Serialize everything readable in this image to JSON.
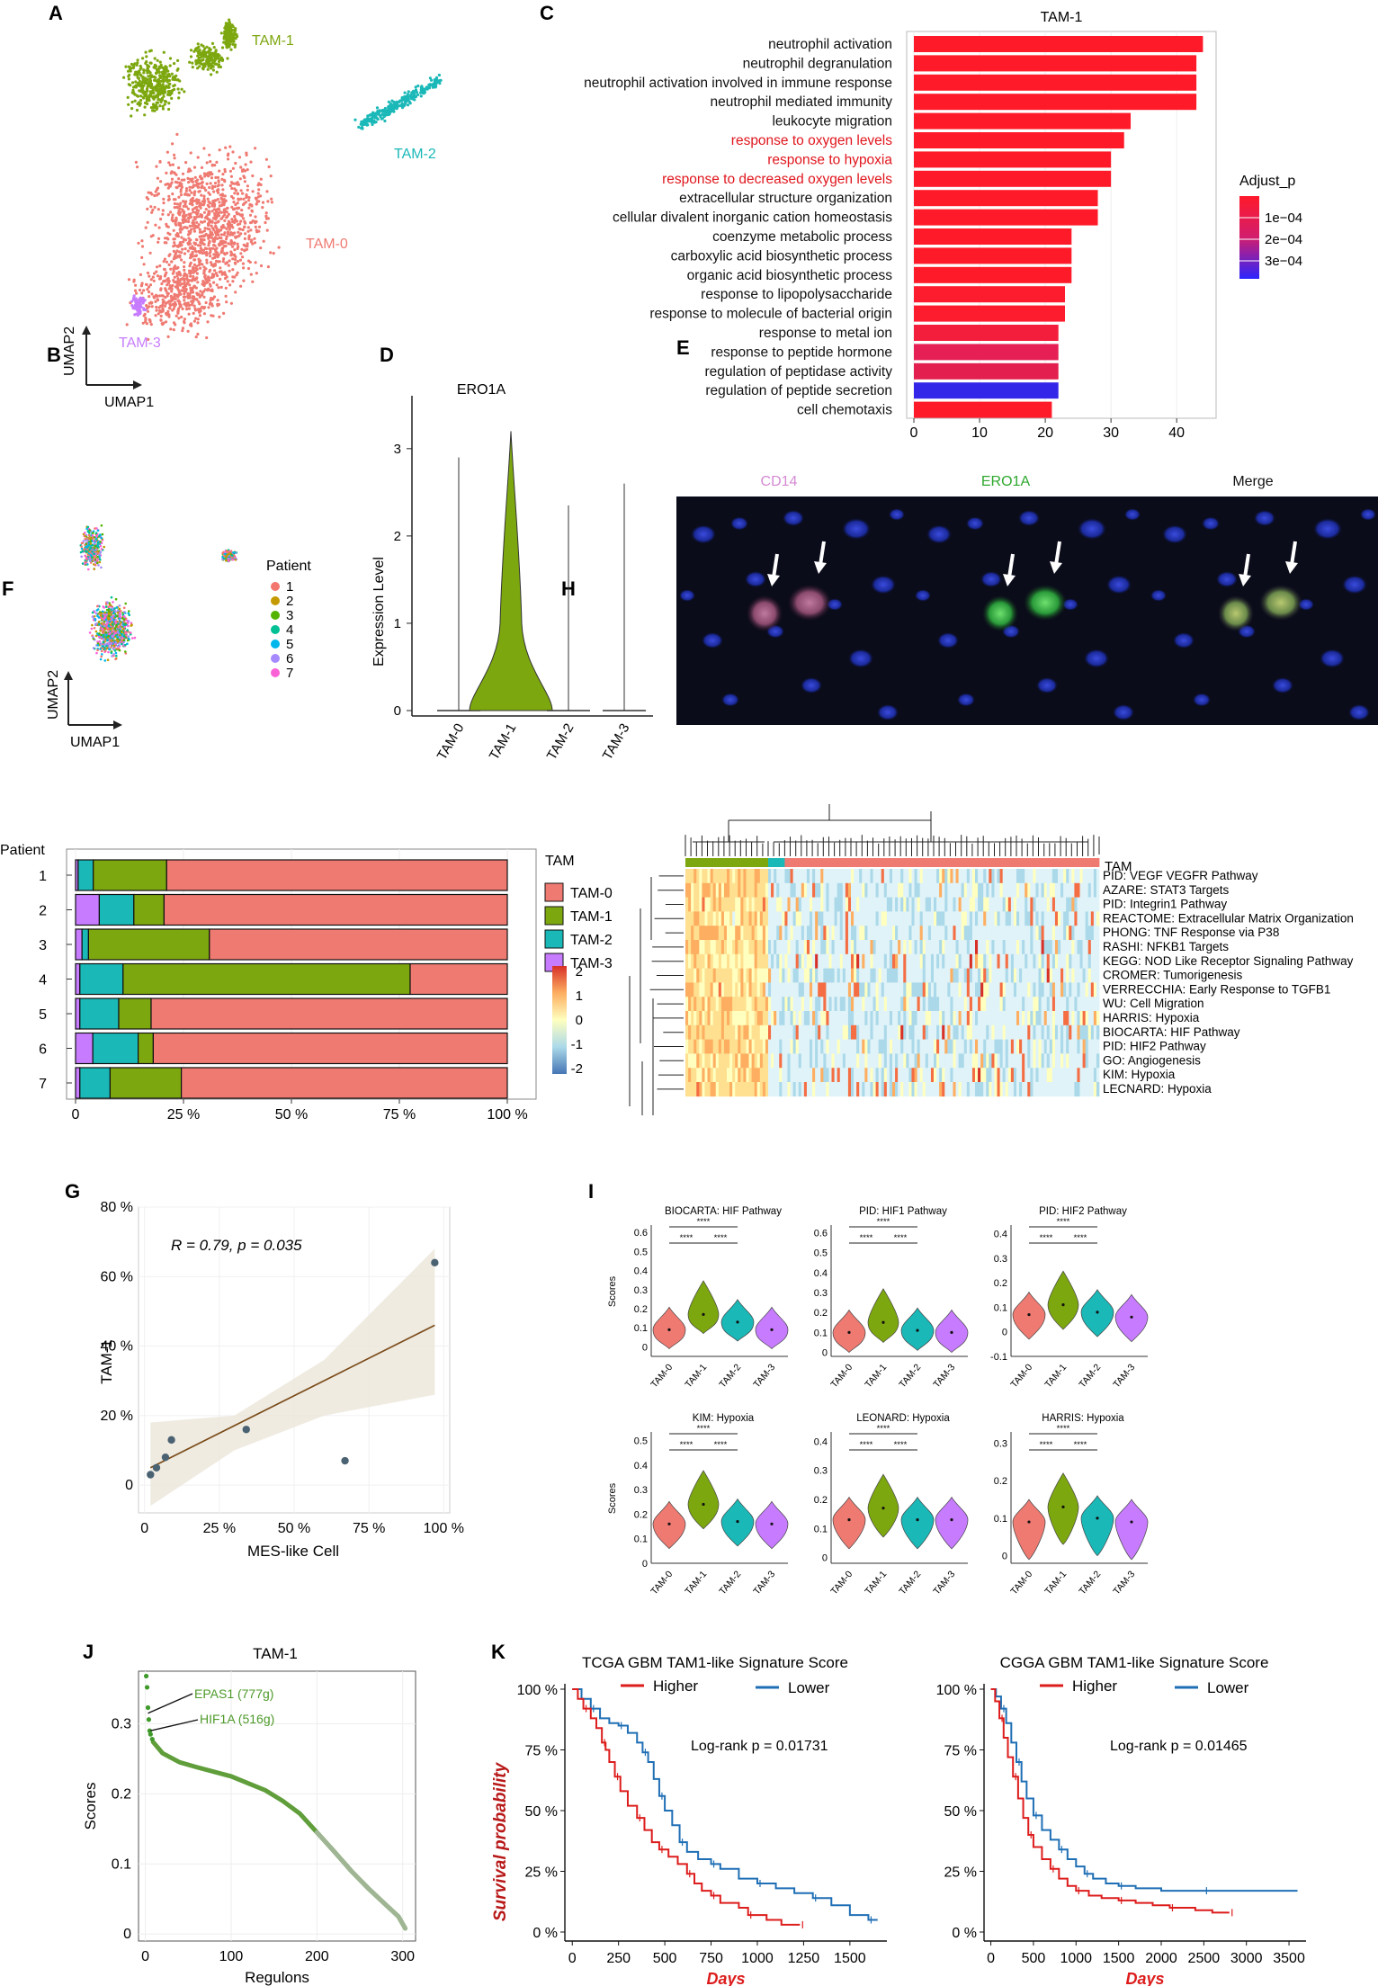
{
  "panel_labels": [
    "A",
    "B",
    "C",
    "D",
    "E",
    "F",
    "G",
    "H",
    "I",
    "J",
    "K"
  ],
  "panelA": {
    "axis_x": "UMAP1",
    "axis_y": "UMAP2",
    "clusters": [
      {
        "name": "TAM-0",
        "color": "#ef7a72"
      },
      {
        "name": "TAM-1",
        "color": "#7da70f"
      },
      {
        "name": "TAM-2",
        "color": "#1bb8b8"
      },
      {
        "name": "TAM-3",
        "color": "#c77cff"
      }
    ]
  },
  "panelB": {
    "axis_x": "UMAP1",
    "axis_y": "UMAP2",
    "legend_title": "Patient",
    "patients": [
      {
        "name": "1",
        "color": "#f2766e"
      },
      {
        "name": "2",
        "color": "#c49a00"
      },
      {
        "name": "3",
        "color": "#53b400"
      },
      {
        "name": "4",
        "color": "#00c094"
      },
      {
        "name": "5",
        "color": "#00b6eb"
      },
      {
        "name": "6",
        "color": "#a58aff"
      },
      {
        "name": "7",
        "color": "#fb61d7"
      }
    ]
  },
  "panelC": {
    "chart_data": {
      "type": "bar",
      "orientation": "horizontal",
      "title": "TAM-1",
      "categories": [
        "neutrophil activation",
        "neutrophil degranulation",
        "neutrophil activation involved in immune response",
        "neutrophil mediated immunity",
        "leukocyte migration",
        "response to oxygen levels",
        "response to hypoxia",
        "response to decreased oxygen levels",
        "extracellular structure organization",
        "cellular divalent inorganic cation homeostasis",
        "coenzyme metabolic process",
        "carboxylic acid biosynthetic process",
        "organic acid biosynthetic process",
        "response to lipopolysaccharide",
        "response to molecule of bacterial origin",
        "response to metal ion",
        "response to peptide hormone",
        "regulation of peptidase activity",
        "regulation of peptide secretion",
        "cell chemotaxis"
      ],
      "values": [
        44,
        43,
        43,
        43,
        33,
        32,
        30,
        30,
        28,
        28,
        24,
        24,
        24,
        23,
        23,
        22,
        22,
        22,
        22,
        21
      ],
      "bar_colors": [
        "#fe1a28",
        "#fe1a28",
        "#fe1a28",
        "#fe1a28",
        "#fe1a28",
        "#fe1a28",
        "#fe1a28",
        "#fe1a28",
        "#fe1a28",
        "#fe1a28",
        "#fe1a28",
        "#fe1a28",
        "#fe1a28",
        "#fd1c2e",
        "#fd1c2e",
        "#f31e3b",
        "#e62054",
        "#e21f4e",
        "#3326e8",
        "#fe1a28"
      ],
      "highlighted_red_labels": [
        "response to oxygen levels",
        "response to hypoxia",
        "response to decreased oxygen levels"
      ],
      "xticks": [
        0,
        10,
        20,
        30,
        40
      ],
      "xlim": [
        0,
        46
      ],
      "legend_title": "Adjust_p",
      "legend_ticks": [
        "1e−04",
        "2e−04",
        "3e−04"
      ]
    }
  },
  "panelD": {
    "chart_data": {
      "type": "violin",
      "title": "ERO1A",
      "ylabel": "Expression Level",
      "categories": [
        "TAM-0",
        "TAM-1",
        "TAM-2",
        "TAM-3"
      ],
      "max_values": [
        2.9,
        3.2,
        2.35,
        2.6
      ],
      "yticks": [
        0,
        1,
        2,
        3
      ],
      "ylim": [
        -0.1,
        3.4
      ],
      "colors": [
        "#ef7a72",
        "#7da70f",
        "#1bb8b8",
        "#c77cff"
      ]
    }
  },
  "panelE": {
    "titles": [
      {
        "label": "CD14",
        "color": "#d48ad4"
      },
      {
        "label": "ERO1A",
        "color": "#2ea82e"
      },
      {
        "label": "Merge",
        "color": "#111111"
      }
    ]
  },
  "panelF": {
    "chart_data": {
      "type": "bar",
      "orientation": "horizontal",
      "stacked": true,
      "ylabel": "Patient",
      "categories": [
        "1",
        "2",
        "3",
        "4",
        "5",
        "6",
        "7"
      ],
      "series": [
        {
          "name": "TAM-3",
          "color": "#c77cff",
          "values": [
            0.6,
            5.5,
            1.5,
            1.0,
            1.0,
            4.0,
            1.0
          ]
        },
        {
          "name": "TAM-2",
          "color": "#1bb8b8",
          "values": [
            3.5,
            8.0,
            1.5,
            10.0,
            9.0,
            10.5,
            7.0
          ]
        },
        {
          "name": "TAM-1",
          "color": "#7da70f",
          "values": [
            17.0,
            7.0,
            28.0,
            66.5,
            7.5,
            3.5,
            16.5
          ]
        },
        {
          "name": "TAM-0",
          "color": "#ef7a72",
          "values": [
            78.9,
            79.5,
            69.0,
            22.5,
            82.5,
            82.0,
            75.5
          ]
        }
      ],
      "xticks": [
        "0",
        "25 %",
        "50 %",
        "75 %",
        "100 %"
      ],
      "legend_title": "TAM",
      "legend_order": [
        "TAM-0",
        "TAM-1",
        "TAM-2",
        "TAM-3"
      ]
    }
  },
  "panelG": {
    "chart_data": {
      "type": "scatter",
      "xlabel": "MES-like Cell",
      "ylabel": "TAM-1",
      "annotation": "R = 0.79, p = 0.035",
      "x": [
        2,
        4,
        7,
        9,
        34,
        67,
        97
      ],
      "y": [
        3,
        5,
        8,
        13,
        16,
        7,
        64
      ],
      "fit": {
        "x0": 2,
        "y0": 5,
        "x1": 97,
        "y1": 46
      },
      "xticks": [
        "0",
        "25 %",
        "50 %",
        "75 %",
        "100 %"
      ],
      "yticks": [
        "0",
        "20 %",
        "40 %",
        "60 %",
        "80 %"
      ],
      "xlim": [
        -2,
        102
      ],
      "ylim": [
        -8,
        80
      ]
    }
  },
  "panelH": {
    "legend_title": "TAM",
    "colorbar_ticks": [
      "2",
      "1",
      "0",
      "-1",
      "-2"
    ],
    "rows": [
      "PID: VEGF VEGFR Pathway",
      "AZARE: STAT3 Targets",
      "PID: Integrin1 Pathway",
      "REACTOME: Extracellular Matrix Organization",
      "PHONG: TNF Response via P38",
      "RASHI: NFKB1 Targets",
      "KEGG: NOD Like Receptor Signaling Pathway",
      "CROMER: Tumorigenesis",
      "VERRECCHIA: Early Response to TGFB1",
      "WU: Cell Migration",
      "HARRIS: Hypoxia",
      "BIOCARTA: HIF Pathway",
      "PID: HIF2 Pathway",
      "GO: Angiogenesis",
      "KIM: Hypoxia",
      "LECNARD: Hypoxia"
    ]
  },
  "panelI": {
    "ylabel": "Scores",
    "significance": "****",
    "categories": [
      "TAM-0",
      "TAM-1",
      "TAM-2",
      "TAM-3"
    ],
    "colors": [
      "#ef7a72",
      "#7da70f",
      "#1bb8b8",
      "#c77cff"
    ],
    "plots": [
      {
        "title": "BIOCARTA: HIF Pathway",
        "yticks": [
          "0",
          "0.1",
          "0.2",
          "0.3",
          "0.4",
          "0.5",
          "0.6"
        ],
        "ylim": [
          -0.05,
          0.62
        ],
        "medians": [
          0.09,
          0.17,
          0.13,
          0.09
        ],
        "show_ylabel": true
      },
      {
        "title": "PID: HIF1 Pathway",
        "yticks": [
          "0",
          "0.1",
          "0.2",
          "0.3",
          "0.4",
          "0.5",
          "0.6"
        ],
        "ylim": [
          -0.02,
          0.62
        ],
        "medians": [
          0.1,
          0.15,
          0.11,
          0.1
        ],
        "show_ylabel": false
      },
      {
        "title": "PID: HIF2 Pathway",
        "yticks": [
          "-0.1",
          "0",
          "0.1",
          "0.2",
          "0.3",
          "0.4"
        ],
        "ylim": [
          -0.1,
          0.42
        ],
        "medians": [
          0.07,
          0.11,
          0.08,
          0.06
        ],
        "show_ylabel": false
      },
      {
        "title": "KIM: Hypoxia",
        "yticks": [
          "0",
          "0.1",
          "0.2",
          "0.3",
          "0.4",
          "0.5"
        ],
        "ylim": [
          0,
          0.52
        ],
        "medians": [
          0.16,
          0.24,
          0.17,
          0.16
        ],
        "show_ylabel": true
      },
      {
        "title": "LEONARD: Hypoxia",
        "yticks": [
          "0",
          "0.1",
          "0.2",
          "0.3",
          "0.4"
        ],
        "ylim": [
          -0.02,
          0.42
        ],
        "medians": [
          0.13,
          0.17,
          0.13,
          0.13
        ],
        "show_ylabel": false
      },
      {
        "title": "HARRIS: Hypoxia",
        "yticks": [
          "0",
          "0.1",
          "0.2",
          "0.3"
        ],
        "ylim": [
          -0.02,
          0.32
        ],
        "medians": [
          0.09,
          0.13,
          0.1,
          0.09
        ],
        "show_ylabel": false
      }
    ]
  },
  "panelJ": {
    "chart_data": {
      "type": "scatter",
      "title": "TAM-1",
      "xlabel": "Regulons",
      "ylabel": "Scores",
      "annotations": [
        "EPAS1 (777g)",
        "HIF1A (516g)"
      ],
      "xticks": [
        0,
        100,
        200,
        300
      ],
      "yticks": [
        "0",
        "0.1",
        "0.2",
        "0.3"
      ],
      "xlim": [
        -8,
        315
      ],
      "ylim": [
        -0.01,
        0.375
      ],
      "top_points": [
        [
          1,
          0.368
        ],
        [
          2,
          0.352
        ],
        [
          3,
          0.323
        ],
        [
          4,
          0.306
        ],
        [
          5,
          0.29
        ],
        [
          6,
          0.285
        ],
        [
          8,
          0.278
        ]
      ],
      "curve_knots": [
        [
          9,
          0.274
        ],
        [
          20,
          0.258
        ],
        [
          40,
          0.245
        ],
        [
          60,
          0.238
        ],
        [
          100,
          0.225
        ],
        [
          140,
          0.205
        ],
        [
          160,
          0.19
        ],
        [
          180,
          0.172
        ],
        [
          200,
          0.145
        ],
        [
          220,
          0.118
        ],
        [
          240,
          0.09
        ],
        [
          260,
          0.065
        ],
        [
          280,
          0.042
        ],
        [
          295,
          0.025
        ],
        [
          303,
          0.008
        ]
      ]
    }
  },
  "panelK": {
    "ylabel": "Survival probability",
    "xlabel": "Days",
    "legend": [
      {
        "name": "Higher",
        "color": "#dd1c1c"
      },
      {
        "name": "Lower",
        "color": "#1f6fb5"
      }
    ],
    "yticks": [
      "0 %",
      "25 %",
      "50 %",
      "75 %",
      "100 %"
    ],
    "plots": [
      {
        "title": "TCGA GBM TAM1-like Signature Score",
        "pvalue": "Log-rank p = 0.01731",
        "xticks": [
          0,
          250,
          500,
          750,
          1000,
          1250,
          1500
        ],
        "xlim": [
          -40,
          1700
        ],
        "higher": [
          [
            0,
            1.0
          ],
          [
            30,
            0.96
          ],
          [
            60,
            0.92
          ],
          [
            100,
            0.88
          ],
          [
            130,
            0.84
          ],
          [
            160,
            0.78
          ],
          [
            180,
            0.75
          ],
          [
            200,
            0.7
          ],
          [
            230,
            0.64
          ],
          [
            260,
            0.58
          ],
          [
            300,
            0.52
          ],
          [
            350,
            0.47
          ],
          [
            390,
            0.42
          ],
          [
            430,
            0.37
          ],
          [
            470,
            0.34
          ],
          [
            520,
            0.31
          ],
          [
            570,
            0.28
          ],
          [
            620,
            0.24
          ],
          [
            660,
            0.2
          ],
          [
            700,
            0.17
          ],
          [
            750,
            0.15
          ],
          [
            800,
            0.12
          ],
          [
            900,
            0.1
          ],
          [
            950,
            0.07
          ],
          [
            1050,
            0.05
          ],
          [
            1130,
            0.03
          ],
          [
            1230,
            0.03
          ]
        ],
        "lower": [
          [
            0,
            1.0
          ],
          [
            50,
            0.96
          ],
          [
            100,
            0.92
          ],
          [
            150,
            0.88
          ],
          [
            200,
            0.86
          ],
          [
            250,
            0.85
          ],
          [
            300,
            0.82
          ],
          [
            350,
            0.78
          ],
          [
            380,
            0.74
          ],
          [
            410,
            0.7
          ],
          [
            440,
            0.63
          ],
          [
            470,
            0.56
          ],
          [
            500,
            0.5
          ],
          [
            540,
            0.44
          ],
          [
            580,
            0.37
          ],
          [
            620,
            0.33
          ],
          [
            680,
            0.3
          ],
          [
            750,
            0.28
          ],
          [
            800,
            0.26
          ],
          [
            900,
            0.22
          ],
          [
            1000,
            0.2
          ],
          [
            1100,
            0.18
          ],
          [
            1200,
            0.16
          ],
          [
            1300,
            0.14
          ],
          [
            1400,
            0.11
          ],
          [
            1500,
            0.07
          ],
          [
            1600,
            0.05
          ],
          [
            1650,
            0.05
          ]
        ]
      },
      {
        "title": "CGGA GBM TAM1-like Signature Score",
        "pvalue": "Log-rank p = 0.01465",
        "xticks": [
          0,
          500,
          1000,
          1500,
          2000,
          2500,
          3000,
          3500
        ],
        "xlim": [
          -80,
          3700
        ],
        "higher": [
          [
            0,
            1.0
          ],
          [
            50,
            0.95
          ],
          [
            100,
            0.88
          ],
          [
            150,
            0.8
          ],
          [
            200,
            0.72
          ],
          [
            260,
            0.64
          ],
          [
            320,
            0.55
          ],
          [
            380,
            0.47
          ],
          [
            440,
            0.4
          ],
          [
            500,
            0.35
          ],
          [
            600,
            0.3
          ],
          [
            700,
            0.26
          ],
          [
            800,
            0.22
          ],
          [
            900,
            0.19
          ],
          [
            1000,
            0.17
          ],
          [
            1150,
            0.15
          ],
          [
            1300,
            0.14
          ],
          [
            1500,
            0.13
          ],
          [
            1700,
            0.12
          ],
          [
            1900,
            0.11
          ],
          [
            2100,
            0.1
          ],
          [
            2400,
            0.09
          ],
          [
            2600,
            0.08
          ],
          [
            2800,
            0.08
          ]
        ],
        "lower": [
          [
            0,
            1.0
          ],
          [
            60,
            0.97
          ],
          [
            120,
            0.92
          ],
          [
            180,
            0.86
          ],
          [
            240,
            0.78
          ],
          [
            300,
            0.7
          ],
          [
            360,
            0.62
          ],
          [
            420,
            0.55
          ],
          [
            500,
            0.48
          ],
          [
            600,
            0.42
          ],
          [
            700,
            0.38
          ],
          [
            800,
            0.34
          ],
          [
            900,
            0.3
          ],
          [
            1000,
            0.27
          ],
          [
            1100,
            0.24
          ],
          [
            1200,
            0.22
          ],
          [
            1350,
            0.2
          ],
          [
            1500,
            0.19
          ],
          [
            1700,
            0.18
          ],
          [
            2000,
            0.17
          ],
          [
            2500,
            0.17
          ],
          [
            3000,
            0.17
          ],
          [
            3600,
            0.17
          ]
        ]
      }
    ]
  }
}
